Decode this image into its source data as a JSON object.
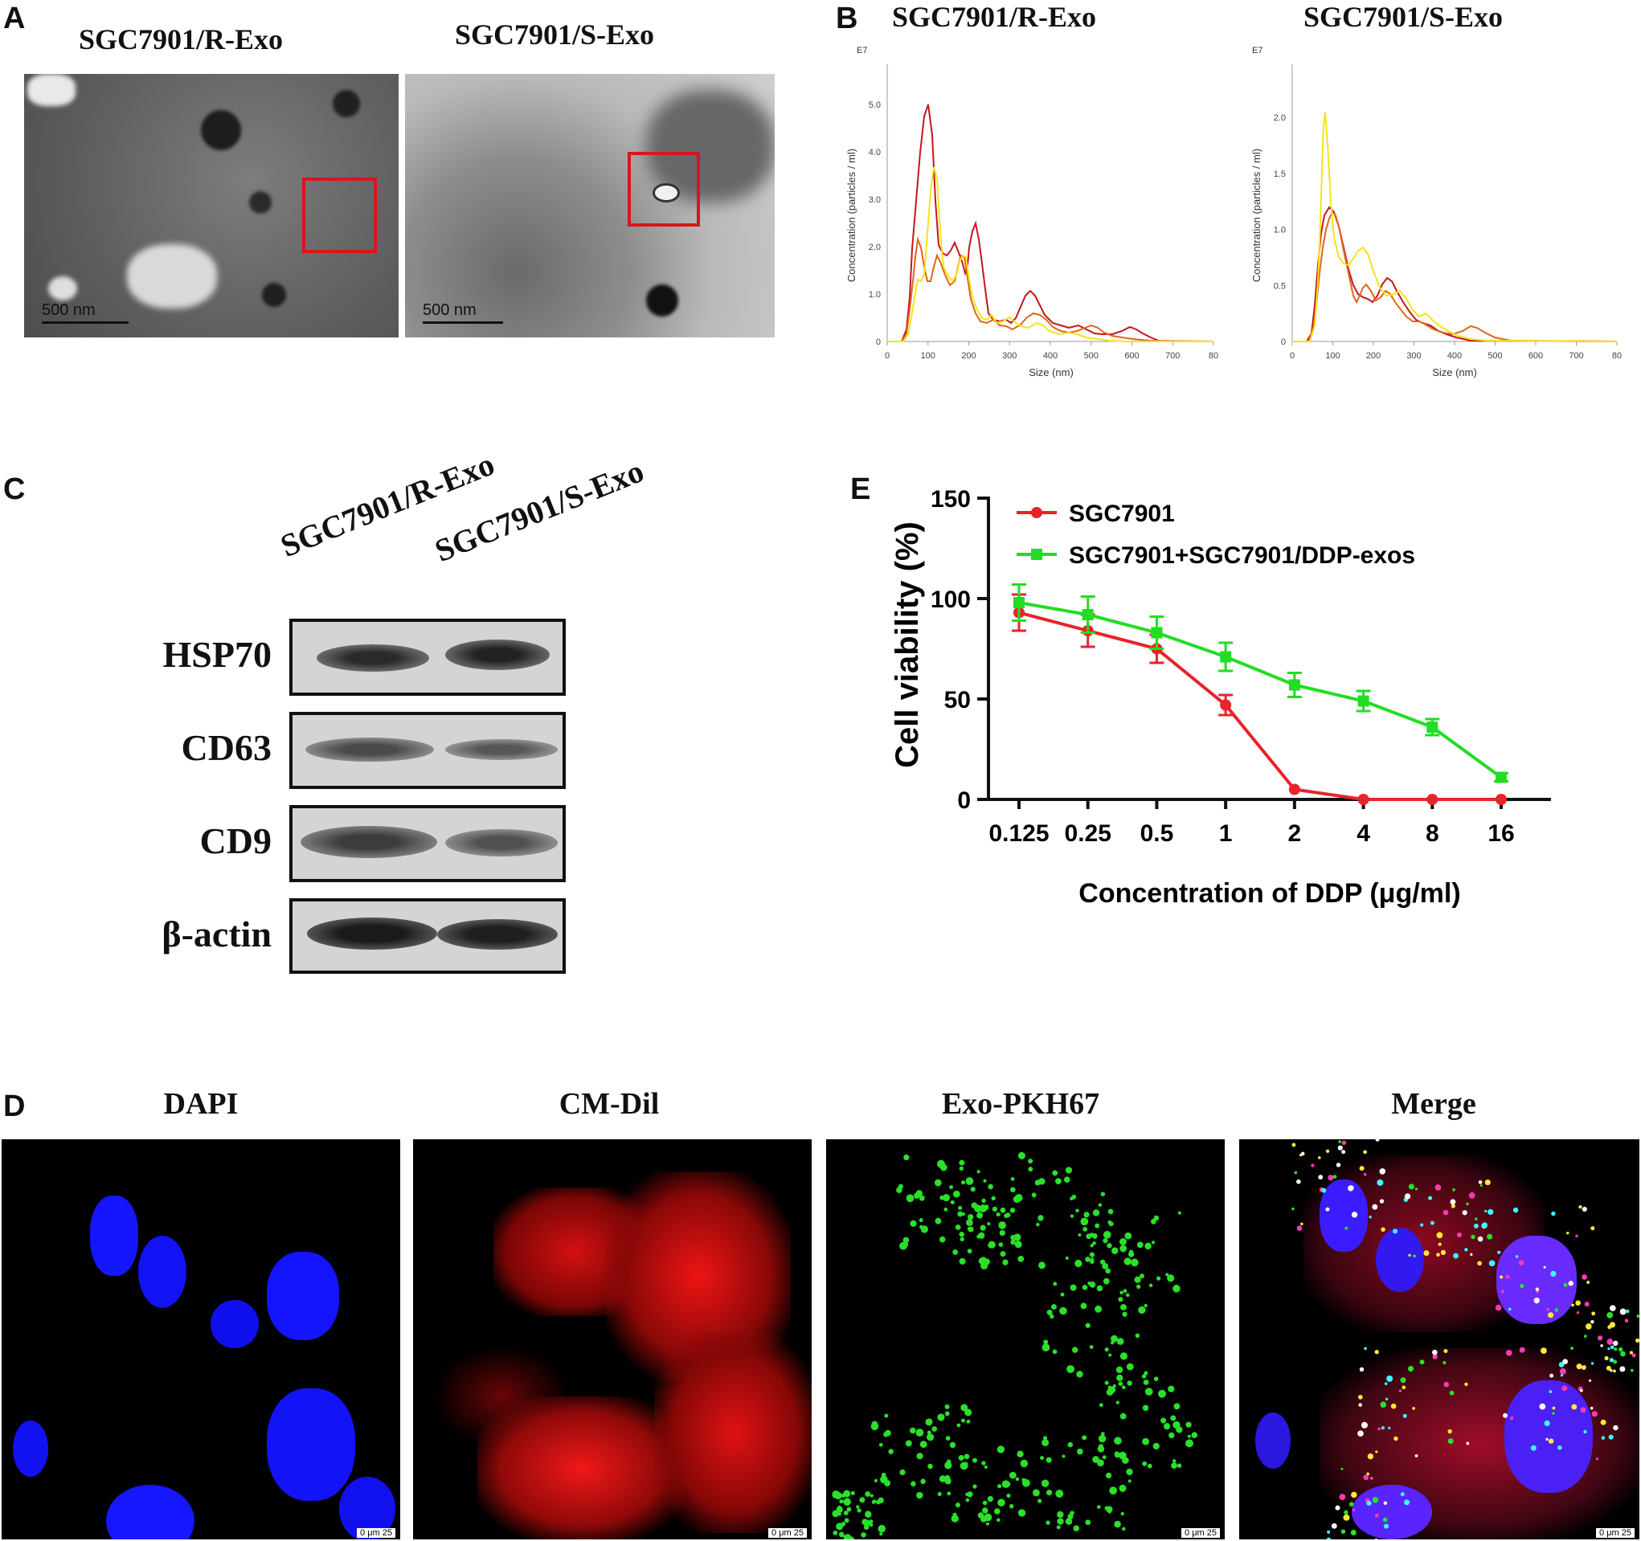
{
  "panels": {
    "a": "A",
    "b": "B",
    "c": "C",
    "d": "D",
    "e": "E"
  },
  "panelA": {
    "title_left": "SGC7901/R-Exo",
    "title_right": "SGC7901/S-Exo",
    "scale_left": "500 nm",
    "scale_right": "500 nm"
  },
  "panelB": {
    "title_left": "SGC7901/R-Exo",
    "title_right": "SGC7901/S-Exo",
    "exp_label": "E7",
    "ylabel": "Concentration (particles / ml)",
    "xlabel": "Size (nm)",
    "xticks": [
      "0",
      "100",
      "200",
      "300",
      "400",
      "500",
      "600",
      "700",
      "80"
    ],
    "left_yticks": [
      "0",
      "1.0",
      "2.0",
      "3.0",
      "4.0",
      "5.0"
    ],
    "right_yticks": [
      "0",
      "0.5",
      "1.0",
      "1.5",
      "2.0"
    ],
    "colors": {
      "red": "#c4171c",
      "orange": "#e0651a",
      "yellow": "#f5e41a"
    }
  },
  "panelC": {
    "lanes": [
      "SGC7901/R-Exo",
      "SGC7901/S-Exo"
    ],
    "markers": [
      "HSP70",
      "CD63",
      "CD9",
      "β-actin"
    ]
  },
  "panelD": {
    "titles": [
      "DAPI",
      "CM-Dil",
      "Exo-PKH67",
      "Merge"
    ],
    "scale_text": "0  μm  25"
  },
  "chart_data": {
    "type": "line",
    "xlabel": "Concentration of DDP (μg/ml)",
    "ylabel": "Cell viability (%)",
    "categories": [
      "0.125",
      "0.25",
      "0.5",
      "1",
      "2",
      "4",
      "8",
      "16"
    ],
    "ylim": [
      0,
      150
    ],
    "yticks": [
      "0",
      "50",
      "100",
      "150"
    ],
    "legend_position": "top-left",
    "series": [
      {
        "name": "SGC7901",
        "color": "#e8232a",
        "marker": "circle",
        "values": [
          93,
          84,
          75,
          47,
          5,
          0,
          0,
          0
        ],
        "errors": [
          9,
          8,
          7,
          5,
          0,
          0,
          0,
          0
        ]
      },
      {
        "name": "SGC7901+SGC7901/DDP-exos",
        "color": "#22dd22",
        "marker": "square",
        "values": [
          98,
          92,
          83,
          71,
          57,
          49,
          36,
          11
        ],
        "errors": [
          9,
          9,
          8,
          7,
          6,
          5,
          4,
          2
        ]
      }
    ]
  }
}
